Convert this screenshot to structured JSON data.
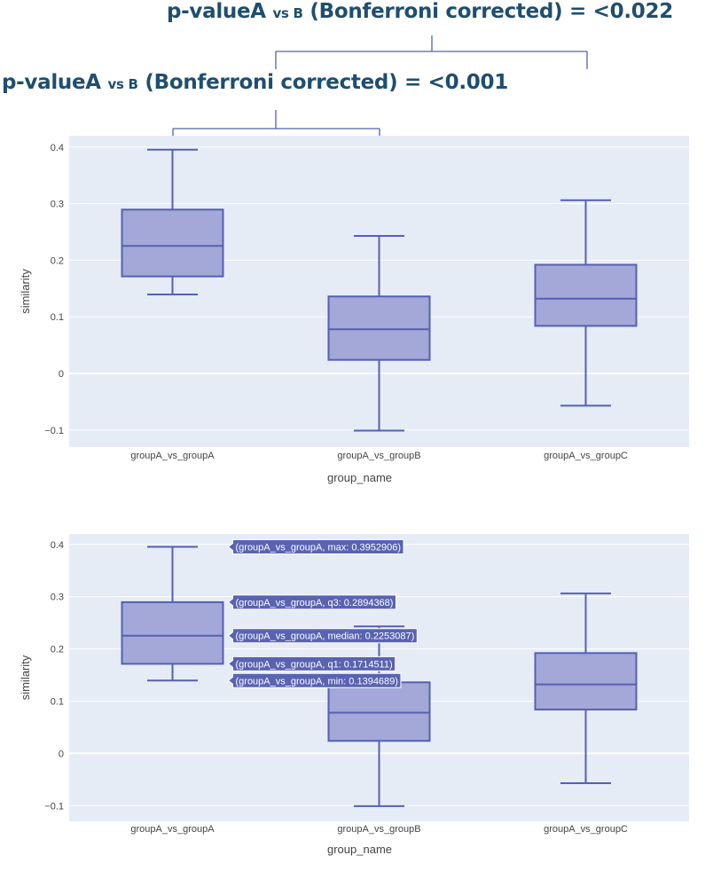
{
  "annotations": [
    {
      "prefix": "p-valueA",
      "sub": "vs B",
      "suffix": "(Bonferroni corrected) = <0.022"
    },
    {
      "prefix": "p-valueA",
      "sub": "vs B",
      "suffix": "(Bonferroni corrected) = <0.001"
    }
  ],
  "colors": {
    "box_fill": "#a3a8d8",
    "box_line": "#5560b0",
    "plot_bg": "#e5ecf6",
    "grid": "#ffffff",
    "hover_bg": "#5963b2",
    "annotation_text": "#1f4e6e"
  },
  "chart_data": [
    {
      "type": "box",
      "xlabel": "group_name",
      "ylabel": "similarity",
      "ylim": [
        -0.13,
        0.42
      ],
      "yticks": [
        -0.1,
        0,
        0.1,
        0.2,
        0.3,
        0.4
      ],
      "ytick_labels": [
        "−0.1",
        "0",
        "0.1",
        "0.2",
        "0.3",
        "0.4"
      ],
      "grid": true,
      "categories": [
        "groupA_vs_groupA",
        "groupA_vs_groupB",
        "groupA_vs_groupC"
      ],
      "boxes": [
        {
          "min": 0.1394689,
          "q1": 0.1714511,
          "median": 0.2253087,
          "q3": 0.2894368,
          "max": 0.3952906
        },
        {
          "min": -0.101,
          "q1": 0.024,
          "median": 0.078,
          "q3": 0.136,
          "max": 0.243
        },
        {
          "min": -0.057,
          "q1": 0.084,
          "median": 0.132,
          "q3": 0.192,
          "max": 0.306
        }
      ]
    },
    {
      "type": "box",
      "xlabel": "group_name",
      "ylabel": "similarity",
      "ylim": [
        -0.13,
        0.42
      ],
      "yticks": [
        -0.1,
        0,
        0.1,
        0.2,
        0.3,
        0.4
      ],
      "ytick_labels": [
        "−0.1",
        "0",
        "0.1",
        "0.2",
        "0.3",
        "0.4"
      ],
      "grid": true,
      "categories": [
        "groupA_vs_groupA",
        "groupA_vs_groupB",
        "groupA_vs_groupC"
      ],
      "boxes": [
        {
          "min": 0.1394689,
          "q1": 0.1714511,
          "median": 0.2253087,
          "q3": 0.2894368,
          "max": 0.3952906
        },
        {
          "min": -0.101,
          "q1": 0.024,
          "median": 0.078,
          "q3": 0.136,
          "max": 0.243
        },
        {
          "min": -0.057,
          "q1": 0.084,
          "median": 0.132,
          "q3": 0.192,
          "max": 0.306
        }
      ],
      "hover_labels": [
        {
          "stat": "max",
          "value": 0.3952906,
          "text": "(groupA_vs_groupA, max: 0.3952906)"
        },
        {
          "stat": "q3",
          "value": 0.2894368,
          "text": "(groupA_vs_groupA, q3: 0.2894368)"
        },
        {
          "stat": "median",
          "value": 0.2253087,
          "text": "(groupA_vs_groupA, median: 0.2253087)"
        },
        {
          "stat": "q1",
          "value": 0.1714511,
          "text": "(groupA_vs_groupA, q1: 0.1714511)"
        },
        {
          "stat": "min",
          "value": 0.1394689,
          "text": "(groupA_vs_groupA, min: 0.1394689)"
        }
      ]
    }
  ]
}
